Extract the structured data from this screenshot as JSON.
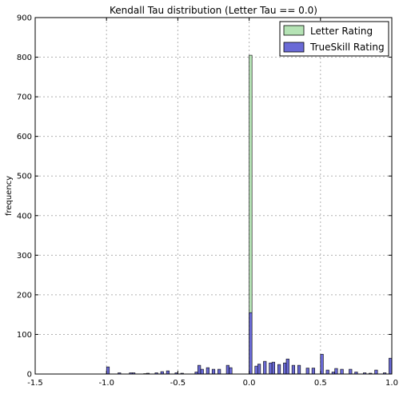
{
  "chart_data": {
    "type": "bar",
    "title": "Kendall Tau distribution (Letter Tau == 0.0)",
    "xlabel": "",
    "ylabel": "frequency",
    "xlim": [
      -1.5,
      1.0
    ],
    "ylim": [
      0,
      900
    ],
    "x_ticks": [
      "-1.5",
      "-1.0",
      "-0.5",
      "0.0",
      "0.5",
      "1.0"
    ],
    "x_tick_values": [
      -1.5,
      -1.0,
      -0.5,
      0.0,
      0.5,
      1.0
    ],
    "y_ticks": [
      "0",
      "100",
      "200",
      "300",
      "400",
      "500",
      "600",
      "700",
      "800",
      "900"
    ],
    "y_tick_values": [
      0,
      100,
      200,
      300,
      400,
      500,
      600,
      700,
      800,
      900
    ],
    "grid": true,
    "legend_position": "top-right",
    "series": [
      {
        "name": "Letter Rating",
        "color": "#b5e3b5",
        "bins": [
          {
            "x0": 0.0,
            "x1": 0.02,
            "value": 805
          }
        ]
      },
      {
        "name": "TrueSkill Rating",
        "color": "#6a6ad6",
        "bins": [
          {
            "x0": -1.0,
            "x1": -0.98,
            "value": 18
          },
          {
            "x0": -0.92,
            "x1": -0.9,
            "value": 3
          },
          {
            "x0": -0.84,
            "x1": -0.82,
            "value": 3
          },
          {
            "x0": -0.82,
            "x1": -0.8,
            "value": 3
          },
          {
            "x0": -0.74,
            "x1": -0.72,
            "value": 1
          },
          {
            "x0": -0.72,
            "x1": -0.7,
            "value": 2
          },
          {
            "x0": -0.66,
            "x1": -0.64,
            "value": 3
          },
          {
            "x0": -0.62,
            "x1": -0.6,
            "value": 6
          },
          {
            "x0": -0.58,
            "x1": -0.56,
            "value": 8
          },
          {
            "x0": -0.52,
            "x1": -0.5,
            "value": 3
          },
          {
            "x0": -0.48,
            "x1": -0.46,
            "value": 2
          },
          {
            "x0": -0.38,
            "x1": -0.36,
            "value": 5
          },
          {
            "x0": -0.36,
            "x1": -0.34,
            "value": 22
          },
          {
            "x0": -0.34,
            "x1": -0.32,
            "value": 12
          },
          {
            "x0": -0.3,
            "x1": -0.28,
            "value": 16
          },
          {
            "x0": -0.26,
            "x1": -0.24,
            "value": 12
          },
          {
            "x0": -0.22,
            "x1": -0.2,
            "value": 12
          },
          {
            "x0": -0.16,
            "x1": -0.14,
            "value": 22
          },
          {
            "x0": -0.14,
            "x1": -0.12,
            "value": 16
          },
          {
            "x0": 0.0,
            "x1": 0.02,
            "value": 155
          },
          {
            "x0": 0.04,
            "x1": 0.06,
            "value": 20
          },
          {
            "x0": 0.06,
            "x1": 0.08,
            "value": 25
          },
          {
            "x0": 0.1,
            "x1": 0.12,
            "value": 32
          },
          {
            "x0": 0.14,
            "x1": 0.16,
            "value": 28
          },
          {
            "x0": 0.16,
            "x1": 0.18,
            "value": 30
          },
          {
            "x0": 0.2,
            "x1": 0.22,
            "value": 24
          },
          {
            "x0": 0.24,
            "x1": 0.26,
            "value": 28
          },
          {
            "x0": 0.26,
            "x1": 0.28,
            "value": 38
          },
          {
            "x0": 0.3,
            "x1": 0.32,
            "value": 22
          },
          {
            "x0": 0.34,
            "x1": 0.36,
            "value": 22
          },
          {
            "x0": 0.4,
            "x1": 0.42,
            "value": 15
          },
          {
            "x0": 0.44,
            "x1": 0.46,
            "value": 15
          },
          {
            "x0": 0.5,
            "x1": 0.52,
            "value": 50
          },
          {
            "x0": 0.54,
            "x1": 0.56,
            "value": 10
          },
          {
            "x0": 0.58,
            "x1": 0.6,
            "value": 5
          },
          {
            "x0": 0.6,
            "x1": 0.62,
            "value": 14
          },
          {
            "x0": 0.64,
            "x1": 0.66,
            "value": 12
          },
          {
            "x0": 0.7,
            "x1": 0.72,
            "value": 12
          },
          {
            "x0": 0.74,
            "x1": 0.76,
            "value": 5
          },
          {
            "x0": 0.8,
            "x1": 0.82,
            "value": 3
          },
          {
            "x0": 0.84,
            "x1": 0.86,
            "value": 2
          },
          {
            "x0": 0.88,
            "x1": 0.9,
            "value": 10
          },
          {
            "x0": 0.94,
            "x1": 0.96,
            "value": 3
          },
          {
            "x0": 0.98,
            "x1": 1.0,
            "value": 40
          }
        ]
      }
    ]
  }
}
